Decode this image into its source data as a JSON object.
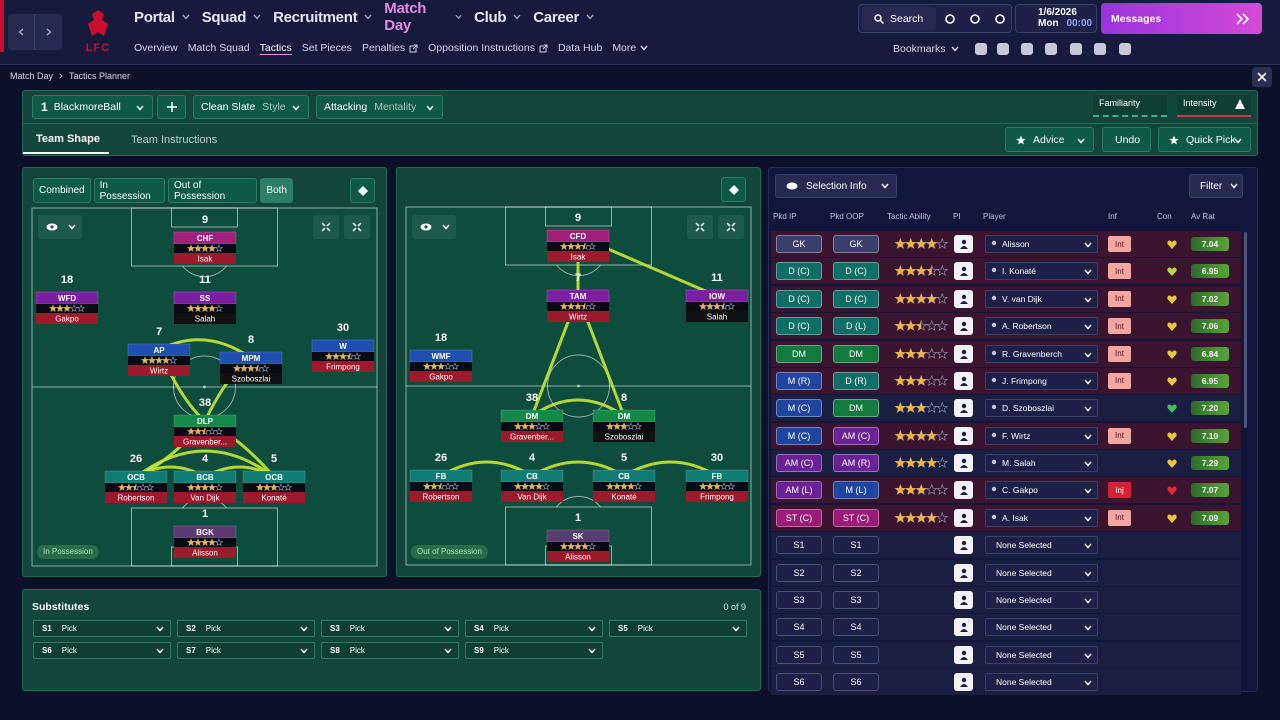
{
  "top_nav": {
    "crest": "LFC",
    "menu": [
      "Portal",
      "Squad",
      "Recruitment",
      "Match Day",
      "Club",
      "Career"
    ],
    "active_menu": 3,
    "submenu": [
      "Overview",
      "Match Squad",
      "Tactics",
      "Set Pieces",
      "Penalties",
      "Opposition Instructions",
      "Data Hub",
      "More"
    ],
    "active_submenu": 2,
    "search": "Search",
    "date": "1/6/2026",
    "day": "Mon",
    "time": "00:00",
    "messages": "Messages",
    "bookmarks": "Bookmarks"
  },
  "breadcrumb": [
    "Match Day",
    "Tactics Planner"
  ],
  "tactic": {
    "slot": "1",
    "name": "BlackmoreBall",
    "style": "Clean Slate",
    "style_label": "Style",
    "mentality": "Attacking",
    "mentality_label": "Mentality",
    "familiarity": "Familiarity",
    "intensity": "Intensity"
  },
  "tabs": [
    "Team Shape",
    "Team Instructions"
  ],
  "actions": [
    "Advice",
    "Undo",
    "Quick Pick"
  ],
  "pitch_filters": [
    "Combined",
    "In Possession",
    "Out of Possession",
    "Both"
  ],
  "active_filter": 3,
  "pitches": [
    {
      "label": "In Possession",
      "players": [
        {
          "number": 9,
          "role": "CHF",
          "name": "Isak",
          "stars": 4,
          "color": "#a0207a",
          "band": "#9c1a2c"
        },
        {
          "number": 11,
          "role": "SS",
          "name": "Salah",
          "stars": 4,
          "color": "#7a1fa0",
          "band": "#111111"
        },
        {
          "number": 18,
          "role": "WFD",
          "name": "Gakpo",
          "stars": 3,
          "color": "#7a1fa0",
          "band": "#9c1a2c"
        },
        {
          "number": 7,
          "role": "AP",
          "name": "Wirtz",
          "stars": 4,
          "color": "#1f4fb0",
          "band": "#9c1a2c"
        },
        {
          "number": 8,
          "role": "MPM",
          "name": "Szoboszlai",
          "stars": 3.5,
          "color": "#1f4fb0",
          "band": "#111111"
        },
        {
          "number": 30,
          "role": "W",
          "name": "Frimpong",
          "stars": 3.5,
          "color": "#1f4fb0",
          "band": "#9c1a2c"
        },
        {
          "number": 38,
          "role": "DLP",
          "name": "Gravenber...",
          "stars": 2.5,
          "color": "#138a4a",
          "band": "#9c1a2c"
        },
        {
          "number": 26,
          "role": "OCB",
          "name": "Robertson",
          "stars": 2.5,
          "color": "#0f7d74",
          "band": "#9c1a2c"
        },
        {
          "number": 4,
          "role": "BCB",
          "name": "Van Dijk",
          "stars": 4,
          "color": "#0f7d74",
          "band": "#9c1a2c"
        },
        {
          "number": 5,
          "role": "OCB",
          "name": "Konaté",
          "stars": 3,
          "color": "#0f7d74",
          "band": "#9c1a2c"
        },
        {
          "number": 1,
          "role": "BGK",
          "name": "Alisson",
          "stars": 4,
          "color": "#5a3a70",
          "band": "#9c1a2c"
        }
      ]
    },
    {
      "label": "Out of Possession",
      "players": [
        {
          "number": 9,
          "role": "CFD",
          "name": "Isak",
          "stars": 3.5,
          "color": "#a0207a",
          "band": "#9c1a2c"
        },
        {
          "number": 7,
          "role": "TAM",
          "name": "Wirtz",
          "stars": 3.5,
          "color": "#7a1fa0",
          "band": "#9c1a2c"
        },
        {
          "number": 11,
          "role": "IOW",
          "name": "Salah",
          "stars": 3.5,
          "color": "#7a1fa0",
          "band": "#111111"
        },
        {
          "number": 18,
          "role": "WMF",
          "name": "Gakpo",
          "stars": 3,
          "color": "#1f4fb0",
          "band": "#9c1a2c"
        },
        {
          "number": 38,
          "role": "DM",
          "name": "Gravenber...",
          "stars": 3,
          "color": "#138a4a",
          "band": "#9c1a2c"
        },
        {
          "number": 8,
          "role": "DM",
          "name": "Szoboszlai",
          "stars": 3,
          "color": "#138a4a",
          "band": "#111111"
        },
        {
          "number": 26,
          "role": "FB",
          "name": "Robertson",
          "stars": 2.5,
          "color": "#0f7d74",
          "band": "#9c1a2c"
        },
        {
          "number": 4,
          "role": "CB",
          "name": "Van Dijk",
          "stars": 4,
          "color": "#0f7d74",
          "band": "#9c1a2c"
        },
        {
          "number": 5,
          "role": "CB",
          "name": "Konaté",
          "stars": 4,
          "color": "#0f7d74",
          "band": "#9c1a2c"
        },
        {
          "number": 30,
          "role": "FB",
          "name": "Frimpong",
          "stars": 3,
          "color": "#0f7d74",
          "band": "#9c1a2c"
        },
        {
          "number": 1,
          "role": "SK",
          "name": "Alisson",
          "stars": 4,
          "color": "#5a3a70",
          "band": "#9c1a2c"
        }
      ]
    }
  ],
  "substitutes": {
    "title": "Substitutes",
    "count": "0 of 9",
    "slots": [
      {
        "slot": "S1",
        "value": "Pick"
      },
      {
        "slot": "S2",
        "value": "Pick"
      },
      {
        "slot": "S3",
        "value": "Pick"
      },
      {
        "slot": "S4",
        "value": "Pick"
      },
      {
        "slot": "S5",
        "value": "Pick"
      },
      {
        "slot": "S6",
        "value": "Pick"
      },
      {
        "slot": "S7",
        "value": "Pick"
      },
      {
        "slot": "S8",
        "value": "Pick"
      },
      {
        "slot": "S9",
        "value": "Pick"
      }
    ]
  },
  "selection": {
    "title": "Selection Info",
    "filter": "Filter",
    "columns": [
      "Pkd IP",
      "Pkd OOP",
      "Tactic Ability",
      "PI",
      "Player",
      "Inf",
      "Con",
      "Av Rat"
    ],
    "rows": [
      {
        "ip": "GK",
        "oop": "GK",
        "ability": 4,
        "player": "Alisson",
        "inf": "Int",
        "rating": "7.04",
        "ip_color": "#3b3f6e",
        "oop_color": "#3b3f6e",
        "con_color": "#e8c640"
      },
      {
        "ip": "D (C)",
        "oop": "D (C)",
        "ability": 3.5,
        "player": "I. Konaté",
        "inf": "Int",
        "rating": "6.95",
        "ip_color": "#0f6e66",
        "oop_color": "#0f6e66",
        "con_color": "#b9d840"
      },
      {
        "ip": "D (C)",
        "oop": "D (C)",
        "ability": 4,
        "player": "V. van Dijk",
        "inf": "Int",
        "rating": "7.02",
        "ip_color": "#0f6e66",
        "oop_color": "#0f6e66",
        "con_color": "#e8c640"
      },
      {
        "ip": "D (C)",
        "oop": "D (L)",
        "ability": 2.5,
        "player": "A. Robertson",
        "inf": "Int",
        "rating": "7.06",
        "ip_color": "#0f6e66",
        "oop_color": "#0f6e66",
        "con_color": "#e8c640"
      },
      {
        "ip": "DM",
        "oop": "DM",
        "ability": 3,
        "player": "R. Gravenberch",
        "inf": "Int",
        "rating": "6.84",
        "ip_color": "#137a3e",
        "oop_color": "#137a3e",
        "con_color": "#e8c640"
      },
      {
        "ip": "M (R)",
        "oop": "D (R)",
        "ability": 3,
        "player": "J. Frimpong",
        "inf": "Int",
        "rating": "6.95",
        "ip_color": "#1f45a0",
        "oop_color": "#0f6e66",
        "con_color": "#e8c640"
      },
      {
        "ip": "M (C)",
        "oop": "DM",
        "ability": 3,
        "player": "D. Szoboszlai",
        "rating": "7.20",
        "ip_color": "#1f45a0",
        "oop_color": "#137a3e",
        "con_color": "#3cc060"
      },
      {
        "ip": "M (C)",
        "oop": "AM (C)",
        "ability": 4,
        "player": "F. Wirtz",
        "inf": "Int",
        "rating": "7.10",
        "ip_color": "#1f45a0",
        "oop_color": "#6a2196",
        "con_color": "#e8c640"
      },
      {
        "ip": "AM (C)",
        "oop": "AM (R)",
        "ability": 4,
        "player": "M. Salah",
        "rating": "7.29",
        "ip_color": "#6a2196",
        "oop_color": "#6a2196",
        "con_color": "#e8c640"
      },
      {
        "ip": "AM (L)",
        "oop": "M (L)",
        "ability": 3,
        "player": "C. Gakpo",
        "inf": "Inj",
        "rating": "7.07",
        "ip_color": "#6a2196",
        "oop_color": "#1f45a0",
        "con_color": "#e8283a"
      },
      {
        "ip": "ST (C)",
        "oop": "ST (C)",
        "ability": 4,
        "player": "A. Isak",
        "inf": "Int",
        "rating": "7.09",
        "ip_color": "#9a1c78",
        "oop_color": "#9a1c78",
        "con_color": "#e8c640"
      },
      {
        "ip": "S1",
        "oop": "S1",
        "player": "None Selected"
      },
      {
        "ip": "S2",
        "oop": "S2",
        "player": "None Selected"
      },
      {
        "ip": "S3",
        "oop": "S3",
        "player": "None Selected"
      },
      {
        "ip": "S4",
        "oop": "S4",
        "player": "None Selected"
      },
      {
        "ip": "S5",
        "oop": "S5",
        "player": "None Selected"
      },
      {
        "ip": "S6",
        "oop": "S6",
        "player": "None Selected"
      }
    ]
  }
}
